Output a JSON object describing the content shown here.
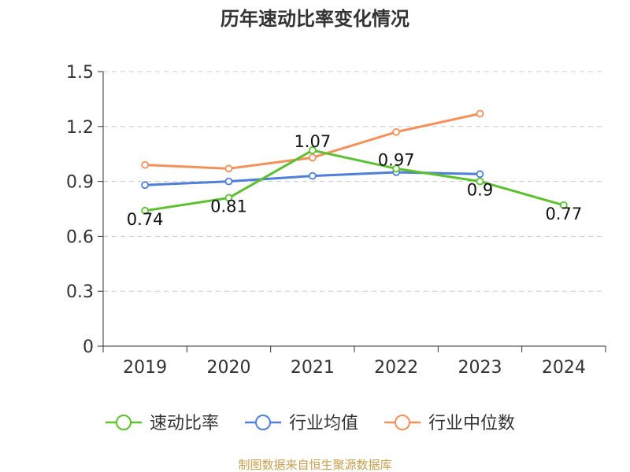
{
  "chart_data": {
    "type": "line",
    "title": "历年速动比率变化情况",
    "categories": [
      "2019",
      "2020",
      "2021",
      "2022",
      "2023",
      "2024"
    ],
    "y_ticks": [
      "0",
      "0.3",
      "0.6",
      "0.9",
      "1.2",
      "1.5"
    ],
    "ylim": [
      0,
      1.5
    ],
    "grid": true,
    "legend_position": "bottom",
    "series": [
      {
        "name": "速动比率",
        "color": "#5cc12f",
        "values": [
          0.74,
          0.81,
          1.07,
          0.97,
          0.9,
          0.77
        ],
        "labels": [
          "0.74",
          "0.81",
          "1.07",
          "0.97",
          "0.9",
          "0.77"
        ]
      },
      {
        "name": "行业均值",
        "color": "#4f7fd8",
        "values": [
          0.88,
          0.9,
          0.93,
          0.95,
          0.94,
          null
        ]
      },
      {
        "name": "行业中位数",
        "color": "#f5905a",
        "values": [
          0.99,
          0.97,
          1.03,
          1.17,
          1.27,
          null
        ]
      }
    ],
    "source": "制图数据来自恒生聚源数据库"
  }
}
